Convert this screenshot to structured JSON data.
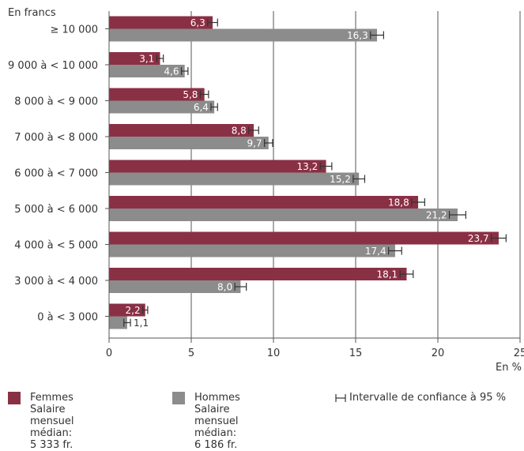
{
  "chart_data": {
    "type": "bar",
    "orientation": "horizontal",
    "y_unit_label": "En francs",
    "x_unit_label": "En %",
    "categories": [
      "≥ 10 000",
      "9 000 à < 10 000",
      "8 000 à < 9 000",
      "7 000 à < 8 000",
      "6 000 à < 7 000",
      "5 000 à < 6 000",
      "4 000 à < 5 000",
      "3 000 à < 4 000",
      "0 à < 3 000"
    ],
    "value_labels": {
      "femmes": [
        "6,3",
        "3,1",
        "5,8",
        "8,8",
        "13,2",
        "18,8",
        "23,7",
        "18,1",
        "2,2"
      ],
      "hommes": [
        "16,3",
        "4,6",
        "6,4",
        "9,7",
        "15,2",
        "21,2",
        "17,4",
        "8,0",
        "1,1"
      ]
    },
    "series": [
      {
        "name": "Femmes",
        "color": "#8a3045",
        "values": [
          6.3,
          3.1,
          5.8,
          8.8,
          13.2,
          18.8,
          23.7,
          18.1,
          2.2
        ],
        "ci_halfwidth": [
          0.3,
          0.2,
          0.25,
          0.3,
          0.35,
          0.4,
          0.45,
          0.4,
          0.15
        ]
      },
      {
        "name": "Hommes",
        "color": "#8c8c8c",
        "values": [
          16.3,
          4.6,
          6.4,
          9.7,
          15.2,
          21.2,
          17.4,
          8.0,
          1.1
        ],
        "ci_halfwidth": [
          0.4,
          0.2,
          0.2,
          0.25,
          0.35,
          0.5,
          0.4,
          0.35,
          0.2
        ]
      }
    ],
    "xlim": [
      0,
      25
    ],
    "xticks": [
      0,
      5,
      10,
      15,
      20,
      25
    ],
    "grid": true,
    "legend_position": "bottom"
  },
  "legend": {
    "femmes": {
      "name": "Femmes",
      "line1": "Salaire mensuel",
      "line2": "médian: 5 333 fr."
    },
    "hommes": {
      "name": "Hommes",
      "line1": "Salaire mensuel",
      "line2": "médian: 6 186 fr."
    },
    "ci": "Intervalle de confiance à 95 %"
  }
}
